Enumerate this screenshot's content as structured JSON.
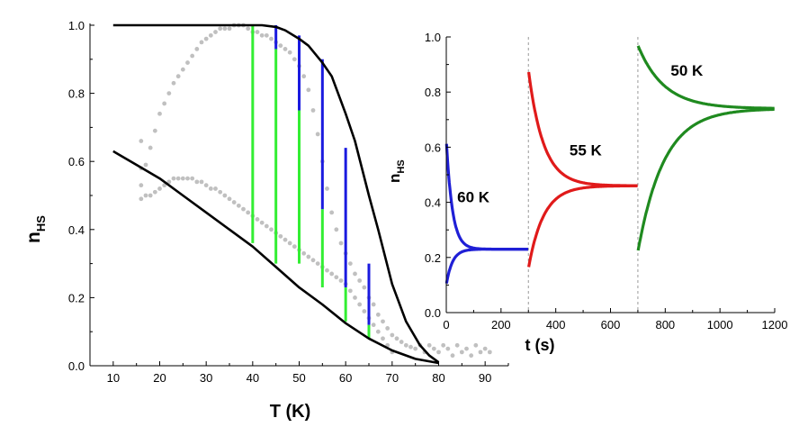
{
  "chart_data": [
    {
      "type": "line",
      "xlabel": "T (K)",
      "ylabel": "n",
      "ylabel_sub": "HS",
      "xlim": [
        5,
        95
      ],
      "ylim": [
        0,
        1
      ],
      "xticks": [
        "10",
        "20",
        "30",
        "40",
        "50",
        "60",
        "70",
        "80",
        "90"
      ],
      "yticks": [
        "0.0",
        "0.2",
        "0.4",
        "0.6",
        "0.8",
        "1.0"
      ],
      "series": [
        {
          "color": "#000000",
          "kind": "line",
          "x": [
            10,
            15,
            20,
            25,
            30,
            35,
            40,
            42,
            45,
            47,
            50,
            52,
            55,
            57,
            60,
            62,
            65,
            67,
            70,
            73,
            76,
            78,
            80
          ],
          "y": [
            1.0,
            1.0,
            1.0,
            1.0,
            1.0,
            1.0,
            1.0,
            1.0,
            0.995,
            0.985,
            0.96,
            0.94,
            0.89,
            0.85,
            0.74,
            0.66,
            0.5,
            0.4,
            0.24,
            0.13,
            0.06,
            0.03,
            0.01
          ]
        },
        {
          "color": "#000000",
          "kind": "line",
          "x": [
            10,
            15,
            20,
            25,
            30,
            35,
            40,
            45,
            50,
            55,
            60,
            65,
            70,
            75,
            80
          ],
          "y": [
            0.63,
            0.59,
            0.55,
            0.5,
            0.45,
            0.4,
            0.35,
            0.29,
            0.23,
            0.18,
            0.125,
            0.08,
            0.045,
            0.02,
            0.008
          ]
        },
        {
          "color": "#c0c0c0",
          "kind": "scatter",
          "x": [
            16,
            16,
            16,
            16,
            17,
            18,
            19,
            20,
            21,
            22,
            23,
            24,
            25,
            26,
            27,
            28,
            29,
            30,
            31,
            32,
            33,
            34,
            35,
            36,
            37,
            38,
            39,
            40,
            41,
            42,
            43,
            44,
            45,
            46,
            47,
            48,
            49,
            50,
            51,
            52,
            53,
            54,
            55,
            56,
            57,
            58,
            59,
            60,
            61,
            62,
            63,
            64,
            65,
            66,
            67,
            68,
            69,
            70,
            71,
            72,
            73,
            74,
            75,
            76,
            77,
            78,
            79,
            80,
            81,
            82,
            83,
            84,
            85,
            86,
            87,
            88,
            89,
            90,
            91
          ],
          "y": [
            0.49,
            0.53,
            0.58,
            0.66,
            0.59,
            0.64,
            0.69,
            0.74,
            0.77,
            0.8,
            0.83,
            0.85,
            0.87,
            0.89,
            0.91,
            0.93,
            0.95,
            0.96,
            0.97,
            0.98,
            0.99,
            0.99,
            0.99,
            1.0,
            1.0,
            1.0,
            0.99,
            0.98,
            0.98,
            0.97,
            0.97,
            0.96,
            0.95,
            0.94,
            0.93,
            0.92,
            0.9,
            0.88,
            0.85,
            0.81,
            0.75,
            0.68,
            0.6,
            0.52,
            0.45,
            0.4,
            0.36,
            0.33,
            0.3,
            0.27,
            0.25,
            0.23,
            0.2,
            0.18,
            0.15,
            0.13,
            0.11,
            0.09,
            0.08,
            0.07,
            0.06,
            0.055,
            0.05,
            0.06,
            0.04,
            0.06,
            0.05,
            0.04,
            0.06,
            0.05,
            0.03,
            0.06,
            0.04,
            0.05,
            0.03,
            0.06,
            0.04,
            0.05,
            0.04
          ]
        },
        {
          "color": "#c0c0c0",
          "kind": "scatter",
          "x": [
            17,
            18,
            19,
            20,
            21,
            22,
            23,
            24,
            25,
            26,
            27,
            28,
            29,
            30,
            31,
            32,
            33,
            34,
            35,
            36,
            37,
            38,
            39,
            40,
            41,
            42,
            43,
            44,
            45,
            46,
            47,
            48,
            49,
            50,
            51,
            52,
            53,
            54,
            55,
            56,
            57,
            58,
            59,
            60,
            61,
            62,
            63,
            64,
            65,
            66,
            67,
            68,
            69,
            70
          ],
          "y": [
            0.5,
            0.5,
            0.51,
            0.52,
            0.53,
            0.54,
            0.55,
            0.55,
            0.55,
            0.55,
            0.55,
            0.54,
            0.54,
            0.53,
            0.52,
            0.52,
            0.51,
            0.5,
            0.49,
            0.48,
            0.47,
            0.46,
            0.45,
            0.44,
            0.43,
            0.42,
            0.41,
            0.4,
            0.39,
            0.38,
            0.37,
            0.36,
            0.35,
            0.34,
            0.33,
            0.32,
            0.31,
            0.3,
            0.29,
            0.28,
            0.27,
            0.26,
            0.25,
            0.24,
            0.22,
            0.2,
            0.18,
            0.16,
            0.14,
            0.12,
            0.1,
            0.08,
            0.06,
            0.04
          ]
        }
      ],
      "relaxation_bars": [
        {
          "x": 40,
          "green": [
            0.36,
            1.0
          ]
        },
        {
          "x": 45,
          "green": [
            0.3,
            0.93
          ],
          "blue": [
            0.93,
            1.0
          ]
        },
        {
          "x": 50,
          "green": [
            0.3,
            0.75
          ],
          "blue": [
            0.75,
            0.97
          ]
        },
        {
          "x": 55,
          "green": [
            0.23,
            0.46
          ],
          "blue": [
            0.46,
            0.9
          ]
        },
        {
          "x": 60,
          "green": [
            0.13,
            0.23
          ],
          "blue": [
            0.23,
            0.64
          ]
        },
        {
          "x": 65,
          "green": [
            0.08,
            0.12
          ],
          "blue": [
            0.12,
            0.3
          ]
        }
      ],
      "bar_colors": {
        "green": "#33ee33",
        "blue": "#1a1adf"
      }
    },
    {
      "type": "line",
      "xlabel": "t (s)",
      "ylabel": "n",
      "ylabel_sub": "HS",
      "xlim": [
        0,
        1200
      ],
      "ylim": [
        0,
        1
      ],
      "xticks": [
        "0",
        "200",
        "400",
        "600",
        "800",
        "1000",
        "1200"
      ],
      "yticks": [
        "0.0",
        "0.2",
        "0.4",
        "0.6",
        "0.8",
        "1.0"
      ],
      "dividers": [
        300,
        700
      ],
      "segments": [
        {
          "label": "60 K",
          "color": "#1f1fd6",
          "t0": 0,
          "t1": 300,
          "eq": 0.23,
          "start_hi": 0.63,
          "start_lo": 0.1,
          "tau": 22,
          "label_t": 40,
          "label_y": 0.4
        },
        {
          "label": "55 K",
          "color": "#e01a1a",
          "t0": 300,
          "t1": 700,
          "eq": 0.46,
          "start_hi": 0.88,
          "start_lo": 0.16,
          "tau": 55,
          "label_t": 450,
          "label_y": 0.57
        },
        {
          "label": "50 K",
          "color": "#1f8a1f",
          "t0": 700,
          "t1": 1200,
          "eq": 0.74,
          "start_hi": 0.97,
          "start_lo": 0.22,
          "tau": 95,
          "label_t": 820,
          "label_y": 0.86
        }
      ]
    }
  ]
}
